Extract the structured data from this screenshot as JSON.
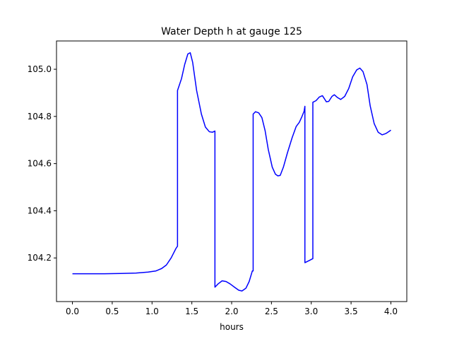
{
  "chart_data": {
    "type": "line",
    "title": "Water Depth h at gauge 125",
    "xlabel": "hours",
    "ylabel": "",
    "xlim": [
      -0.2,
      4.2
    ],
    "ylim": [
      104.015,
      105.12
    ],
    "grid": false,
    "legend": "none",
    "xticks": [
      0.0,
      0.5,
      1.0,
      1.5,
      2.0,
      2.5,
      3.0,
      3.5,
      4.0
    ],
    "xtick_labels": [
      "0.0",
      "0.5",
      "1.0",
      "1.5",
      "2.0",
      "2.5",
      "3.0",
      "3.5",
      "4.0"
    ],
    "yticks": [
      104.2,
      104.4,
      104.6,
      104.8,
      105.0
    ],
    "ytick_labels": [
      "104.2",
      "104.4",
      "104.6",
      "104.8",
      "105.0"
    ],
    "series": [
      {
        "color": "#0000ff",
        "points": [
          [
            0.0,
            104.133
          ],
          [
            0.2,
            104.133
          ],
          [
            0.4,
            104.133
          ],
          [
            0.6,
            104.134
          ],
          [
            0.8,
            104.136
          ],
          [
            0.95,
            104.14
          ],
          [
            1.05,
            104.145
          ],
          [
            1.12,
            104.155
          ],
          [
            1.18,
            104.17
          ],
          [
            1.24,
            104.2
          ],
          [
            1.3,
            104.24
          ],
          [
            1.32,
            104.25
          ],
          [
            1.32,
            104.91
          ],
          [
            1.37,
            104.96
          ],
          [
            1.41,
            105.02
          ],
          [
            1.45,
            105.065
          ],
          [
            1.48,
            105.07
          ],
          [
            1.51,
            105.03
          ],
          [
            1.56,
            104.91
          ],
          [
            1.62,
            104.81
          ],
          [
            1.67,
            104.755
          ],
          [
            1.72,
            104.735
          ],
          [
            1.76,
            104.733
          ],
          [
            1.79,
            104.738
          ],
          [
            1.79,
            104.076
          ],
          [
            1.83,
            104.09
          ],
          [
            1.88,
            104.103
          ],
          [
            1.93,
            104.1
          ],
          [
            1.98,
            104.09
          ],
          [
            2.04,
            104.075
          ],
          [
            2.09,
            104.063
          ],
          [
            2.13,
            104.06
          ],
          [
            2.18,
            104.072
          ],
          [
            2.22,
            104.1
          ],
          [
            2.26,
            104.145
          ],
          [
            2.27,
            104.145
          ],
          [
            2.27,
            104.81
          ],
          [
            2.3,
            104.82
          ],
          [
            2.34,
            104.815
          ],
          [
            2.38,
            104.795
          ],
          [
            2.42,
            104.74
          ],
          [
            2.46,
            104.66
          ],
          [
            2.51,
            104.585
          ],
          [
            2.55,
            104.555
          ],
          [
            2.58,
            104.548
          ],
          [
            2.61,
            104.55
          ],
          [
            2.65,
            104.585
          ],
          [
            2.7,
            104.645
          ],
          [
            2.76,
            104.71
          ],
          [
            2.81,
            104.757
          ],
          [
            2.85,
            104.775
          ],
          [
            2.88,
            104.797
          ],
          [
            2.91,
            104.822
          ],
          [
            2.92,
            104.843
          ],
          [
            2.92,
            104.18
          ],
          [
            2.98,
            104.19
          ],
          [
            3.02,
            104.197
          ],
          [
            3.02,
            104.86
          ],
          [
            3.06,
            104.867
          ],
          [
            3.1,
            104.882
          ],
          [
            3.14,
            104.888
          ],
          [
            3.19,
            104.862
          ],
          [
            3.22,
            104.864
          ],
          [
            3.26,
            104.885
          ],
          [
            3.29,
            104.892
          ],
          [
            3.33,
            104.88
          ],
          [
            3.37,
            104.872
          ],
          [
            3.42,
            104.885
          ],
          [
            3.47,
            104.918
          ],
          [
            3.52,
            104.968
          ],
          [
            3.57,
            104.997
          ],
          [
            3.61,
            105.005
          ],
          [
            3.65,
            104.99
          ],
          [
            3.7,
            104.935
          ],
          [
            3.74,
            104.845
          ],
          [
            3.79,
            104.77
          ],
          [
            3.84,
            104.733
          ],
          [
            3.89,
            104.722
          ],
          [
            3.94,
            104.728
          ],
          [
            3.98,
            104.737
          ],
          [
            4.0,
            104.742
          ]
        ]
      }
    ]
  }
}
